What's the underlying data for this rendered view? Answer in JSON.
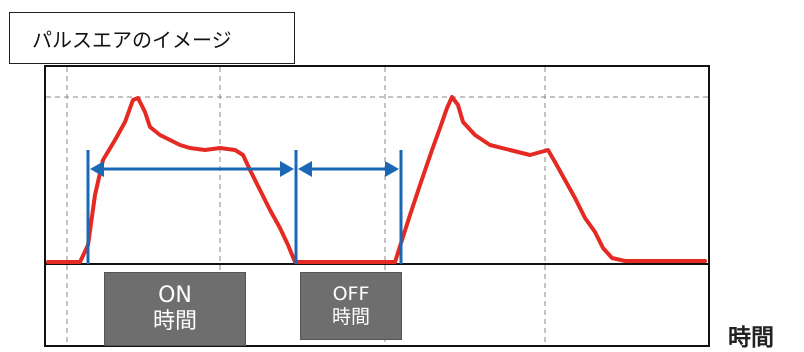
{
  "title": "パルスエアのイメージ",
  "on_label": {
    "line1": "ON",
    "line2": "時間"
  },
  "off_label": {
    "line1": "OFF",
    "line2": "時間"
  },
  "axis_label": "時間",
  "colors": {
    "waveform": "#e52a24",
    "arrow": "#1a67b5",
    "box": "#6e6e6e",
    "grid": "#8a8a8a"
  }
}
